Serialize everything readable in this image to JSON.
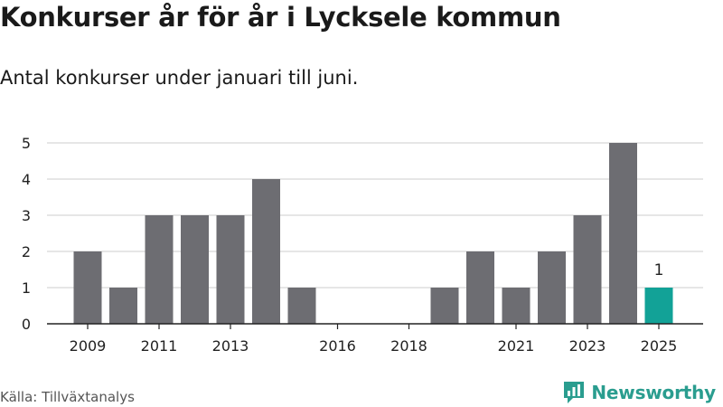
{
  "title": "Konkurser år för år i Lycksele kommun",
  "subtitle": "Antal konkurser under januari till juni.",
  "source": "Källa: Tillväxtanalys",
  "brand": {
    "name": "Newsworthy",
    "icon": "newsworthy-logo-icon",
    "color": "#2a9d8f"
  },
  "chart_data": {
    "type": "bar",
    "categories": [
      "2009",
      "2010",
      "2011",
      "2012",
      "2013",
      "2014",
      "2015",
      "2016",
      "2017",
      "2018",
      "2019",
      "2020",
      "2021",
      "2022",
      "2023",
      "2024",
      "2025"
    ],
    "values": [
      2,
      1,
      3,
      3,
      3,
      4,
      1,
      0,
      0,
      0,
      1,
      2,
      1,
      2,
      3,
      5,
      1
    ],
    "x_tick_labels": [
      "2009",
      "2011",
      "2013",
      "2016",
      "2018",
      "2021",
      "2023",
      "2025"
    ],
    "y_ticks": [
      0,
      1,
      2,
      3,
      4,
      5
    ],
    "ylim": [
      0,
      5
    ],
    "grid": true,
    "highlight": {
      "category": "2025",
      "label": "1"
    },
    "colors": {
      "bar": "#6d6d72",
      "highlight": "#12a297",
      "grid": "#d8d8d8",
      "axis": "#222222"
    }
  }
}
